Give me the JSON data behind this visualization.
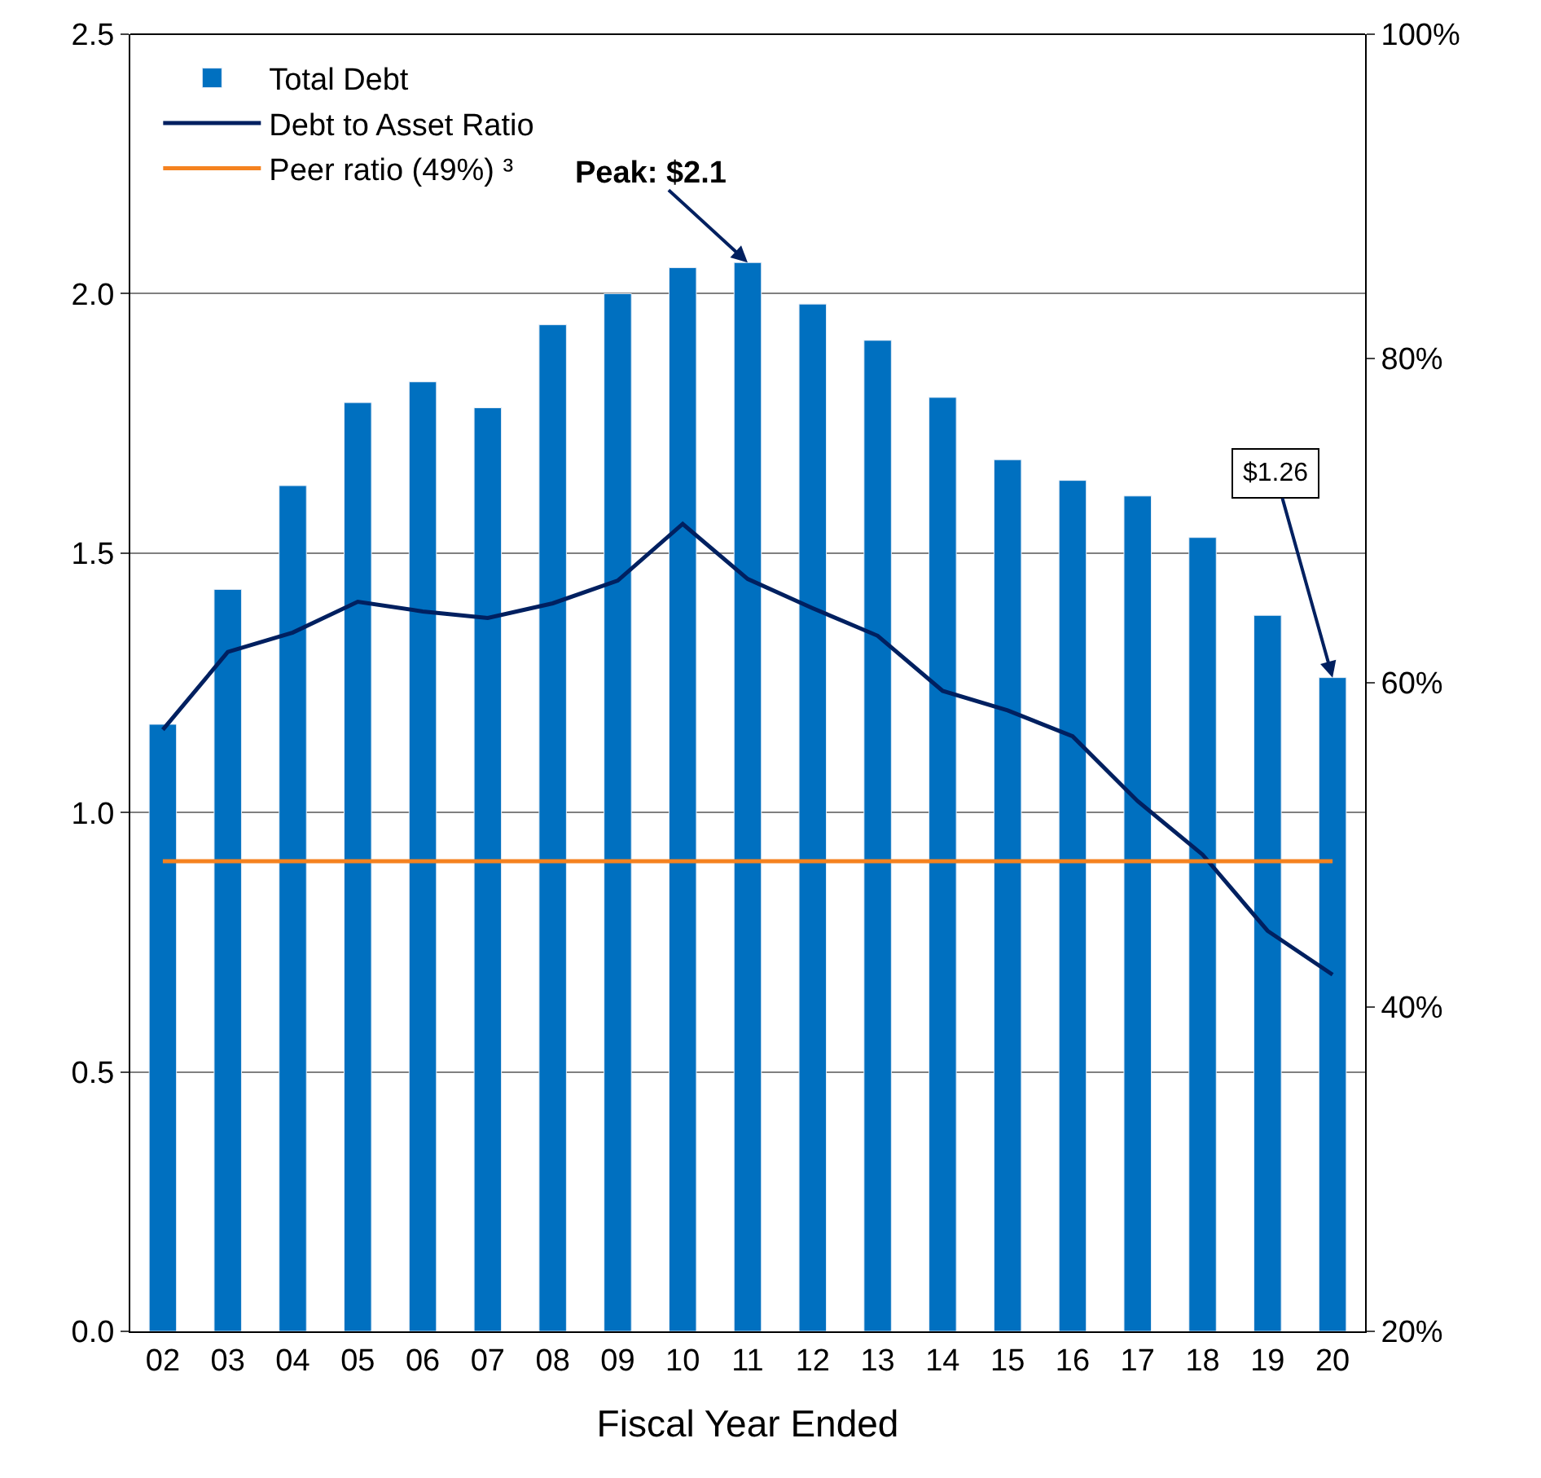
{
  "chart_data": {
    "type": "bar",
    "xlabel": "Fiscal Year Ended",
    "categories": [
      "02",
      "03",
      "04",
      "05",
      "06",
      "07",
      "08",
      "09",
      "10",
      "11",
      "12",
      "13",
      "14",
      "15",
      "16",
      "17",
      "18",
      "19",
      "20"
    ],
    "series": [
      {
        "name": "Total Debt",
        "color": "#0070c0",
        "values": [
          1.17,
          1.43,
          1.63,
          1.79,
          1.83,
          1.78,
          1.94,
          2.0,
          2.05,
          2.06,
          1.98,
          1.91,
          1.8,
          1.68,
          1.64,
          1.61,
          1.53,
          1.38,
          1.26
        ]
      },
      {
        "name": "Debt to Asset Ratio",
        "type": "line",
        "axis": "y2",
        "color": "#002060",
        "values": [
          57.1,
          61.9,
          63.1,
          65.0,
          64.4,
          64.0,
          64.9,
          66.3,
          69.8,
          66.4,
          64.6,
          62.9,
          59.5,
          58.3,
          56.7,
          52.7,
          49.4,
          44.7,
          42.0
        ]
      },
      {
        "name": "Peer ratio (49%) ³",
        "type": "line",
        "axis": "y2",
        "color": "#f5821f",
        "values": [
          49,
          49,
          49,
          49,
          49,
          49,
          49,
          49,
          49,
          49,
          49,
          49,
          49,
          49,
          49,
          49,
          49,
          49,
          49
        ]
      }
    ],
    "ylim": [
      0,
      2.5
    ],
    "yticks": [
      {
        "value": 0,
        "label": "0.0"
      },
      {
        "value": 0.5,
        "label": "0.5"
      },
      {
        "value": 1,
        "label": "1.0"
      },
      {
        "value": 1.5,
        "label": "1.5"
      },
      {
        "value": 2,
        "label": "2.0"
      },
      {
        "value": 2.5,
        "label": "2.5"
      }
    ],
    "y2lim": [
      20,
      100
    ],
    "y2ticks": [
      {
        "value": 20,
        "label": "20%"
      },
      {
        "value": 40,
        "label": "40%"
      },
      {
        "value": 60,
        "label": "60%"
      },
      {
        "value": 80,
        "label": "80%"
      },
      {
        "value": 100,
        "label": "100%"
      }
    ],
    "annotations": [
      {
        "text": "Peak: $2.1",
        "x": "11",
        "y": 2.06
      },
      {
        "text": "$1.26",
        "x": "20",
        "y": 1.26
      }
    ],
    "grid": "y",
    "legend": "top left",
    "marker": "none",
    "line_style": "solid"
  }
}
